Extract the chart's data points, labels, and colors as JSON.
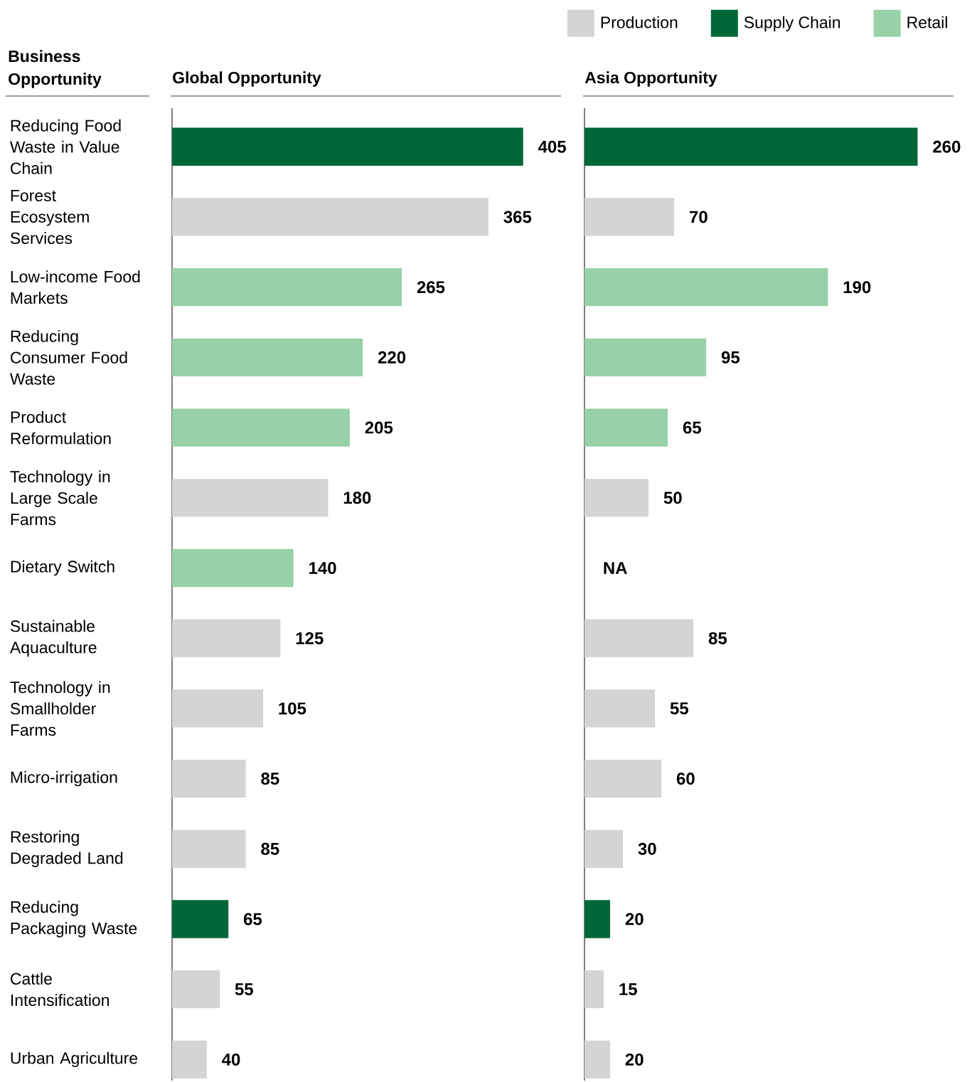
{
  "chart_data": [
    {
      "type": "bar",
      "orientation": "horizontal",
      "stacked": true,
      "data_labels": true,
      "title": "Global Opportunity",
      "ylabel": "Business Opportunity",
      "categories": [
        "Reducing Food Waste in Value Chain",
        "Forest Ecosystem Services",
        "Low-income Food Markets",
        "Reducing Consumer Food Waste",
        "Product Reformulation",
        "Technology in Large Scale Farms",
        "Dietary Switch",
        "Sustainable Aquaculture",
        "Technology in Smallholder Farms",
        "Micro-irrigation",
        "Restoring Degraded Land",
        "Reducing Packaging Waste",
        "Cattle Intensification",
        "Urban Agriculture"
      ],
      "series": [
        {
          "color": "#d3d4d6",
          "values": [
            null,
            365,
            null,
            null,
            null,
            180,
            null,
            125,
            105,
            85,
            85,
            null,
            55,
            40
          ]
        },
        {
          "color": "#006838",
          "values": [
            405,
            null,
            null,
            null,
            null,
            null,
            null,
            null,
            null,
            null,
            null,
            65,
            null,
            null
          ]
        },
        {
          "color": "#98d1a8",
          "values": [
            null,
            null,
            265,
            220,
            205,
            null,
            140,
            null,
            null,
            null,
            null,
            null,
            null,
            null
          ]
        }
      ]
    },
    {
      "type": "bar",
      "orientation": "horizontal",
      "stacked": true,
      "data_labels": true,
      "title": "Asia Opportunity",
      "legend": "top right",
      "categories": [
        null,
        null,
        null,
        null,
        null,
        null,
        null,
        null,
        null,
        null,
        null,
        null,
        null,
        null
      ],
      "annotations": [
        "NA"
      ],
      "series": [
        {
          "name": "Production",
          "color": "#d3d4d6",
          "values": [
            null,
            70,
            null,
            null,
            null,
            50,
            null,
            85,
            55,
            60,
            30,
            null,
            15,
            20
          ]
        },
        {
          "name": "Supply Chain",
          "color": "#006838",
          "values": [
            260,
            null,
            null,
            null,
            null,
            null,
            null,
            null,
            null,
            null,
            null,
            20,
            null,
            null
          ]
        },
        {
          "name": "Retail",
          "color": "#98d1a8",
          "values": [
            null,
            null,
            190,
            95,
            65,
            null,
            null,
            null,
            null,
            null,
            null,
            null,
            null,
            null
          ]
        }
      ]
    }
  ]
}
